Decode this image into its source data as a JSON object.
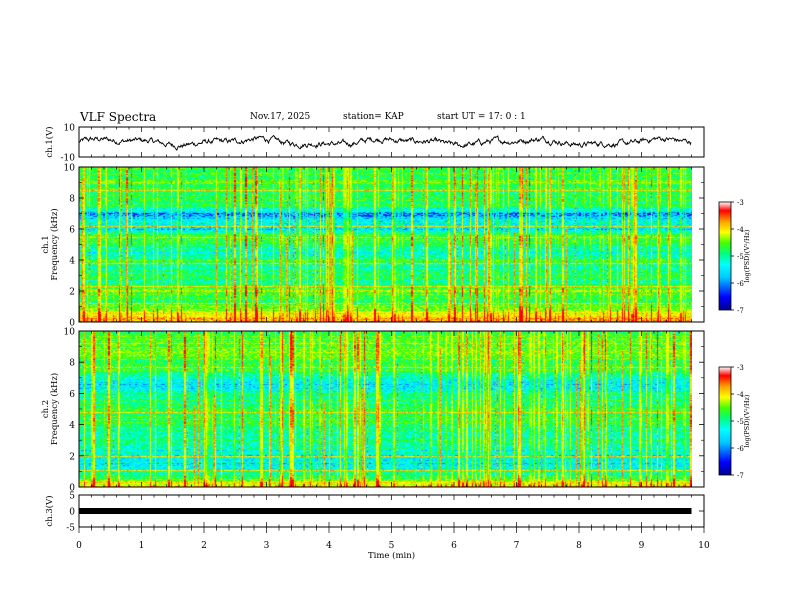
{
  "header": {
    "title": "VLF Spectra",
    "date": "Nov.17, 2025",
    "station": "station= KAP",
    "start": "start  UT =   17: 0  : 1"
  },
  "colors": {
    "trace": "#000000",
    "axis": "#000000",
    "colormap": [
      "#00008f",
      "#0000ff",
      "#00c8ff",
      "#00ffff",
      "#00ff80",
      "#40ff00",
      "#c8ff00",
      "#ffff00",
      "#ffa000",
      "#ff0000",
      "#ffffff"
    ]
  },
  "chart_data": [
    {
      "type": "line",
      "id": "ch1-waveform",
      "ylabel": "ch.1(V)",
      "ylim": [
        -10,
        10
      ],
      "y_ticks": [
        "10",
        "-10"
      ],
      "xlim": [
        0,
        10
      ],
      "trace_end_min": 9.8,
      "description_values": "continuous noisy waveform, amplitude approx ±4 V"
    },
    {
      "type": "heatmap",
      "id": "ch1-spectrogram",
      "ylabel_top": "ch.1",
      "ylabel": "Frequency (kHz)",
      "ylim": [
        0,
        10
      ],
      "y_ticks": [
        "0",
        "2",
        "4",
        "6",
        "8",
        "10"
      ],
      "xlim": [
        0,
        10
      ],
      "data_end_min": 9.8,
      "colorbar": {
        "label": "log(PSD)(V²/Hz)",
        "range": [
          -7,
          -3
        ],
        "ticks": [
          "-3",
          "-4",
          "-5",
          "-6",
          "-7"
        ]
      },
      "profile": [
        {
          "f": 0.0,
          "v": 0.9
        },
        {
          "f": 0.5,
          "v": 0.75
        },
        {
          "f": 1.0,
          "v": 0.55
        },
        {
          "f": 1.5,
          "v": 0.45
        },
        {
          "f": 2.0,
          "v": 0.6
        },
        {
          "f": 2.5,
          "v": 0.42
        },
        {
          "f": 3.0,
          "v": 0.45
        },
        {
          "f": 3.5,
          "v": 0.4
        },
        {
          "f": 4.0,
          "v": 0.48
        },
        {
          "f": 4.5,
          "v": 0.35
        },
        {
          "f": 5.0,
          "v": 0.5
        },
        {
          "f": 5.5,
          "v": 0.55
        },
        {
          "f": 6.0,
          "v": 0.3
        },
        {
          "f": 6.5,
          "v": 0.35
        },
        {
          "f": 7.0,
          "v": 0.2
        },
        {
          "f": 7.5,
          "v": 0.45
        },
        {
          "f": 8.0,
          "v": 0.52
        },
        {
          "f": 8.5,
          "v": 0.48
        },
        {
          "f": 9.0,
          "v": 0.55
        },
        {
          "f": 9.5,
          "v": 0.5
        },
        {
          "f": 10.0,
          "v": 0.5
        }
      ],
      "lines_khz": [
        0.3,
        0.6,
        1.2,
        2.0,
        2.3,
        3.8,
        5.5,
        6.2,
        8.5
      ]
    },
    {
      "type": "heatmap",
      "id": "ch2-spectrogram",
      "ylabel_top": "ch.2",
      "ylabel": "Frequency (kHz)",
      "ylim": [
        0,
        10
      ],
      "y_ticks": [
        "0",
        "2",
        "4",
        "6",
        "8",
        "10"
      ],
      "xlim": [
        0,
        10
      ],
      "data_end_min": 9.8,
      "colorbar": {
        "label": "log(PSD)(V²/Hz)",
        "range": [
          -7,
          -3
        ],
        "ticks": [
          "-3",
          "-4",
          "-5",
          "-6",
          "-7"
        ]
      },
      "profile": [
        {
          "f": 0.0,
          "v": 0.85
        },
        {
          "f": 0.5,
          "v": 0.55
        },
        {
          "f": 1.0,
          "v": 0.4
        },
        {
          "f": 1.5,
          "v": 0.32
        },
        {
          "f": 2.0,
          "v": 0.3
        },
        {
          "f": 2.5,
          "v": 0.38
        },
        {
          "f": 3.0,
          "v": 0.45
        },
        {
          "f": 3.5,
          "v": 0.4
        },
        {
          "f": 4.0,
          "v": 0.5
        },
        {
          "f": 4.5,
          "v": 0.52
        },
        {
          "f": 5.0,
          "v": 0.5
        },
        {
          "f": 5.5,
          "v": 0.45
        },
        {
          "f": 6.0,
          "v": 0.4
        },
        {
          "f": 6.5,
          "v": 0.3
        },
        {
          "f": 7.0,
          "v": 0.35
        },
        {
          "f": 7.5,
          "v": 0.5
        },
        {
          "f": 8.0,
          "v": 0.52
        },
        {
          "f": 8.5,
          "v": 0.55
        },
        {
          "f": 9.0,
          "v": 0.58
        },
        {
          "f": 9.5,
          "v": 0.55
        },
        {
          "f": 10.0,
          "v": 0.5
        }
      ],
      "lines_khz": [
        0.3,
        1.1,
        2.0,
        4.8,
        7.7,
        9.2
      ]
    },
    {
      "type": "line",
      "id": "ch3-waveform",
      "ylabel": "ch.3(V)",
      "ylim": [
        -5,
        5
      ],
      "y_ticks": [
        "5",
        "0",
        "-5"
      ],
      "xlim": [
        0,
        10
      ],
      "xlabel": "Time  (min)",
      "x_ticks": [
        "0",
        "1",
        "2",
        "3",
        "4",
        "5",
        "6",
        "7",
        "8",
        "9",
        "10"
      ],
      "constant_value": 0,
      "trace_end_min": 9.8
    }
  ]
}
